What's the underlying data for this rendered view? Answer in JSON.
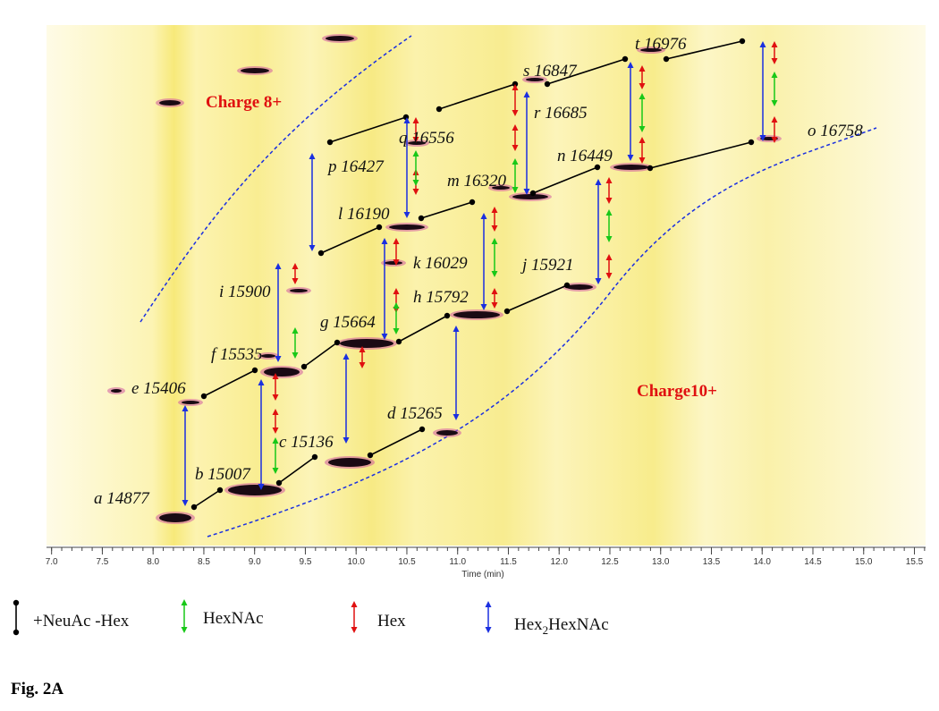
{
  "chart_data": {
    "type": "ion-map",
    "xlabel": "Time (min)",
    "xlim": [
      6.95,
      15.61
    ],
    "xticks": [
      {
        "value": 7,
        "label": "7.0"
      },
      {
        "value": 7.5,
        "label": "7.5"
      },
      {
        "value": 8,
        "label": "8.0"
      },
      {
        "value": 8.5,
        "label": "8.5"
      },
      {
        "value": 9,
        "label": "9.0"
      },
      {
        "value": 9.5,
        "label": "9.5"
      },
      {
        "value": 10,
        "label": "10.0"
      },
      {
        "value": 10.5,
        "label": "10.5"
      },
      {
        "value": 11,
        "label": "11.0"
      },
      {
        "value": 11.5,
        "label": "11.5"
      },
      {
        "value": 12,
        "label": "12.0"
      },
      {
        "value": 12.5,
        "label": "12.5"
      },
      {
        "value": 13,
        "label": "13.0"
      },
      {
        "value": 13.5,
        "label": "13.5"
      },
      {
        "value": 14,
        "label": "14.0"
      },
      {
        "value": 14.5,
        "label": "14.5"
      },
      {
        "value": 15,
        "label": "15.0"
      },
      {
        "value": 15.5,
        "label": "15.5"
      }
    ],
    "annotations": [
      "a 14877",
      "b 15007",
      "c 15136",
      "d 15265",
      "e 15406",
      "f 15535",
      "g 15664",
      "h 15792",
      "i 15900",
      "j 15921",
      "k 16029",
      "l 16190",
      "m 16320",
      "n 16449",
      "o 16758",
      "p 16427",
      "q 16556",
      "r 16685",
      "s 16847",
      "t 16976"
    ],
    "regions": [
      "Charge 8+",
      "Charge10+"
    ],
    "legend": [
      "+NeuAc -Hex",
      "HexNAc",
      "Hex",
      {
        "base": "Hex",
        "sub": "2",
        "rest": "HexNAc"
      }
    ]
  },
  "caption": "Fig. 2A"
}
